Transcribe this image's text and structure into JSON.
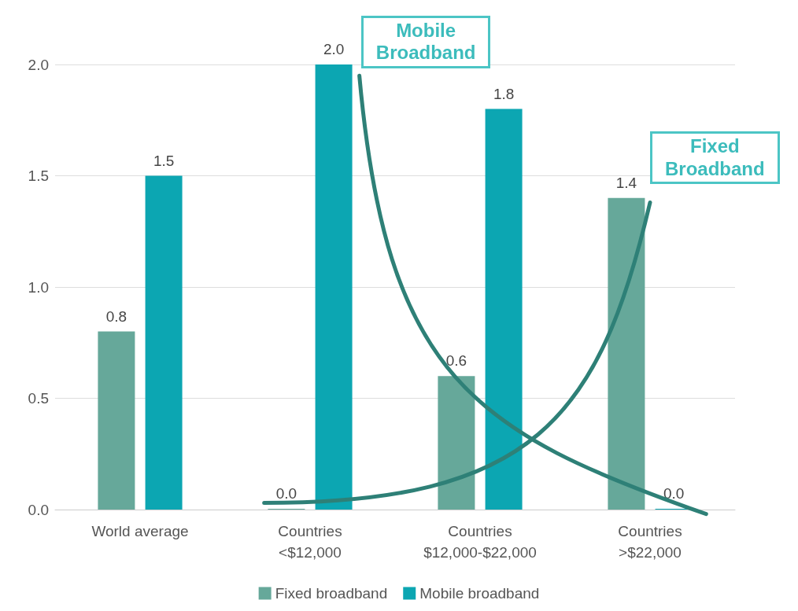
{
  "chart_data": {
    "type": "bar",
    "categories": [
      "World average",
      "Countries\n<$12,000",
      "Countries\n$12,000-$22,000",
      "Countries\n>$22,000"
    ],
    "series": [
      {
        "name": "Fixed broadband",
        "color": "#66a89a",
        "values": [
          0.8,
          0.0,
          0.6,
          1.4
        ],
        "value_labels": [
          "0.8",
          "0.0",
          "0.6",
          "1.4"
        ]
      },
      {
        "name": "Mobile broadband",
        "color": "#0ca6b2",
        "values": [
          1.5,
          2.0,
          1.8,
          0.0
        ],
        "value_labels": [
          "1.5",
          "2.0",
          "1.8",
          "0.0"
        ]
      }
    ],
    "ylim": [
      0,
      2.0
    ],
    "yticks": [
      {
        "value": 0,
        "label": "0.0"
      },
      {
        "value": 0.5,
        "label": "0.5"
      },
      {
        "value": 1.0,
        "label": "1.0"
      },
      {
        "value": 1.5,
        "label": "1.5"
      },
      {
        "value": 2.0,
        "label": "2.0"
      }
    ],
    "grid": "y",
    "legend": "bottom",
    "annotations": [
      "Mobile\nBroadband",
      "Fixed\nBroadband"
    ]
  }
}
